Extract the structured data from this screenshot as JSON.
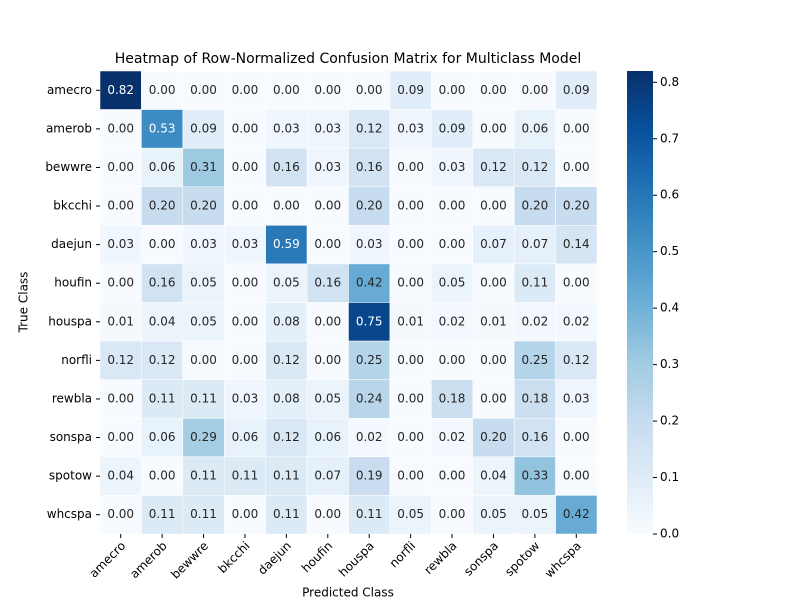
{
  "chart_data": {
    "type": "heatmap",
    "title": "Heatmap of Row-Normalized Confusion Matrix for Multiclass Model",
    "xlabel": "Predicted Class",
    "ylabel": "True Class",
    "x_categories": [
      "amecro",
      "amerob",
      "bewwre",
      "bkcchi",
      "daejun",
      "houfin",
      "houspa",
      "norfli",
      "rewbla",
      "sonspa",
      "spotow",
      "whcspa"
    ],
    "y_categories": [
      "amecro",
      "amerob",
      "bewwre",
      "bkcchi",
      "daejun",
      "houfin",
      "houspa",
      "norfli",
      "rewbla",
      "sonspa",
      "spotow",
      "whcspa"
    ],
    "values": [
      [
        0.82,
        0,
        0,
        0,
        0,
        0,
        0,
        0.09,
        0,
        0,
        0,
        0.09
      ],
      [
        0,
        0.53,
        0.09,
        0,
        0.03,
        0.03,
        0.12,
        0.03,
        0.09,
        0,
        0.06,
        0
      ],
      [
        0,
        0.06,
        0.31,
        0,
        0.16,
        0.03,
        0.16,
        0,
        0.03,
        0.12,
        0.12,
        0
      ],
      [
        0,
        0.2,
        0.2,
        0,
        0,
        0,
        0.2,
        0,
        0,
        0,
        0.2,
        0.2
      ],
      [
        0.03,
        0,
        0.03,
        0.03,
        0.59,
        0,
        0.03,
        0,
        0,
        0.07,
        0.07,
        0.14
      ],
      [
        0,
        0.16,
        0.05,
        0,
        0.05,
        0.16,
        0.42,
        0,
        0.05,
        0,
        0.11,
        0
      ],
      [
        0.01,
        0.04,
        0.05,
        0,
        0.08,
        0,
        0.75,
        0.01,
        0.02,
        0.01,
        0.02,
        0.02
      ],
      [
        0.12,
        0.12,
        0,
        0,
        0.12,
        0,
        0.25,
        0,
        0,
        0,
        0.25,
        0.12
      ],
      [
        0,
        0.11,
        0.11,
        0.03,
        0.08,
        0.05,
        0.24,
        0,
        0.18,
        0,
        0.18,
        0.03
      ],
      [
        0,
        0.06,
        0.29,
        0.06,
        0.12,
        0.06,
        0.02,
        0,
        0.02,
        0.2,
        0.16,
        0
      ],
      [
        0.04,
        0,
        0.11,
        0.11,
        0.11,
        0.07,
        0.19,
        0,
        0,
        0.04,
        0.33,
        0
      ],
      [
        0,
        0.11,
        0.11,
        0,
        0.11,
        0,
        0.11,
        0.05,
        0,
        0.05,
        0.05,
        0.42
      ]
    ],
    "value_labels": [
      [
        "0.82",
        "0.00",
        "0.00",
        "0.00",
        "0.00",
        "0.00",
        "0.00",
        "0.09",
        "0.00",
        "0.00",
        "0.00",
        "0.09"
      ],
      [
        "0.00",
        "0.53",
        "0.09",
        "0.00",
        "0.03",
        "0.03",
        "0.12",
        "0.03",
        "0.09",
        "0.00",
        "0.06",
        "0.00"
      ],
      [
        "0.00",
        "0.06",
        "0.31",
        "0.00",
        "0.16",
        "0.03",
        "0.16",
        "0.00",
        "0.03",
        "0.12",
        "0.12",
        "0.00"
      ],
      [
        "0.00",
        "0.20",
        "0.20",
        "0.00",
        "0.00",
        "0.00",
        "0.20",
        "0.00",
        "0.00",
        "0.00",
        "0.20",
        "0.20"
      ],
      [
        "0.03",
        "0.00",
        "0.03",
        "0.03",
        "0.59",
        "0.00",
        "0.03",
        "0.00",
        "0.00",
        "0.07",
        "0.07",
        "0.14"
      ],
      [
        "0.00",
        "0.16",
        "0.05",
        "0.00",
        "0.05",
        "0.16",
        "0.42",
        "0.00",
        "0.05",
        "0.00",
        "0.11",
        "0.00"
      ],
      [
        "0.01",
        "0.04",
        "0.05",
        "0.00",
        "0.08",
        "0.00",
        "0.75",
        "0.01",
        "0.02",
        "0.01",
        "0.02",
        "0.02"
      ],
      [
        "0.12",
        "0.12",
        "0.00",
        "0.00",
        "0.12",
        "0.00",
        "0.25",
        "0.00",
        "0.00",
        "0.00",
        "0.25",
        "0.12"
      ],
      [
        "0.00",
        "0.11",
        "0.11",
        "0.03",
        "0.08",
        "0.05",
        "0.24",
        "0.00",
        "0.18",
        "0.00",
        "0.18",
        "0.03"
      ],
      [
        "0.00",
        "0.06",
        "0.29",
        "0.06",
        "0.12",
        "0.06",
        "0.02",
        "0.00",
        "0.02",
        "0.20",
        "0.16",
        "0.00"
      ],
      [
        "0.04",
        "0.00",
        "0.11",
        "0.11",
        "0.11",
        "0.07",
        "0.19",
        "0.00",
        "0.00",
        "0.04",
        "0.33",
        "0.00"
      ],
      [
        "0.00",
        "0.11",
        "0.11",
        "0.00",
        "0.11",
        "0.00",
        "0.11",
        "0.05",
        "0.00",
        "0.05",
        "0.05",
        "0.42"
      ]
    ],
    "colormap": "Blues",
    "zlim": [
      0,
      0.82
    ],
    "zticks": [
      {
        "value": 0,
        "label": "0.0"
      },
      0.1,
      0.2,
      0.3,
      0.4,
      0.5,
      0.6,
      0.7,
      0.8
    ]
  }
}
